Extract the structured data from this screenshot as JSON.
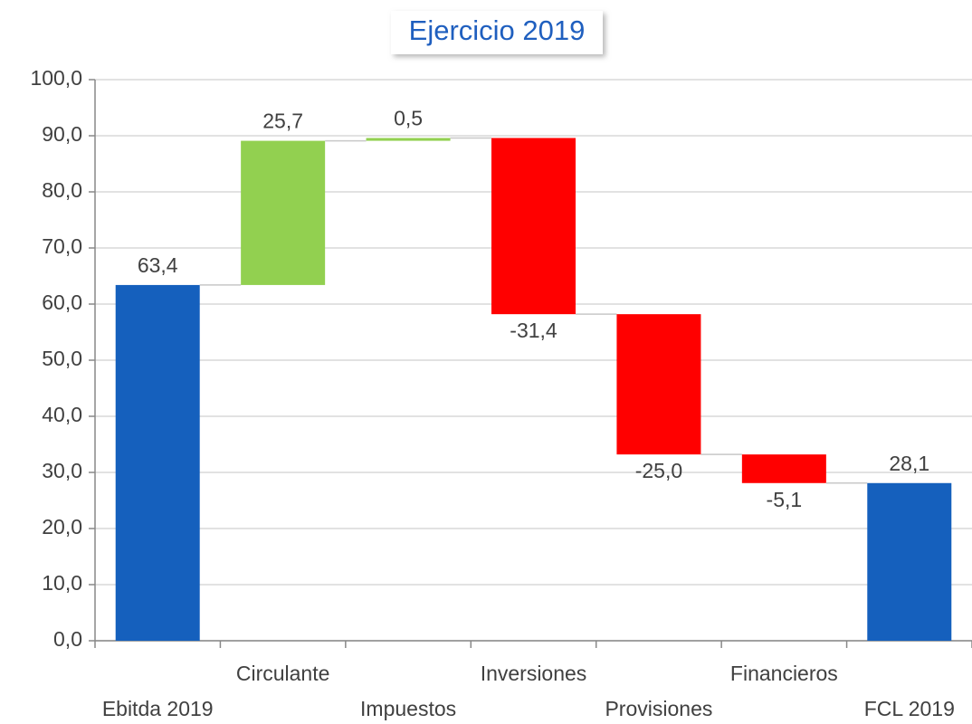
{
  "chart_data": {
    "type": "waterfall",
    "title": "Ejercicio 2019",
    "categories": [
      "Ebitda 2019",
      "Circulante",
      "Impuestos",
      "Inversiones",
      "Provisiones",
      "Financieros",
      "FCL 2019"
    ],
    "values": [
      63.4,
      25.7,
      0.5,
      -31.4,
      -25.0,
      -5.1,
      28.1
    ],
    "value_labels": [
      "63,4",
      "25,7",
      "0,5",
      "-31,4",
      "-25,0",
      "-5,1",
      "28,1"
    ],
    "measures": [
      "absolute",
      "relative",
      "relative",
      "relative",
      "relative",
      "relative",
      "absolute"
    ],
    "colors": {
      "absolute": "#1560bd",
      "increase": "#92d050",
      "decrease": "#ff0000"
    },
    "ylim": [
      0,
      100
    ],
    "yticks": [
      {
        "value": 0,
        "label": "0,0"
      },
      {
        "value": 10,
        "label": "10,0"
      },
      {
        "value": 20,
        "label": "20,0"
      },
      {
        "value": 30,
        "label": "30,0"
      },
      {
        "value": 40,
        "label": "40,0"
      },
      {
        "value": 50,
        "label": "50,0"
      },
      {
        "value": 60,
        "label": "60,0"
      },
      {
        "value": 70,
        "label": "70,0"
      },
      {
        "value": 80,
        "label": "80,0"
      },
      {
        "value": 90,
        "label": "90,0"
      },
      {
        "value": 100,
        "label": "100,0"
      }
    ],
    "grid": true
  }
}
